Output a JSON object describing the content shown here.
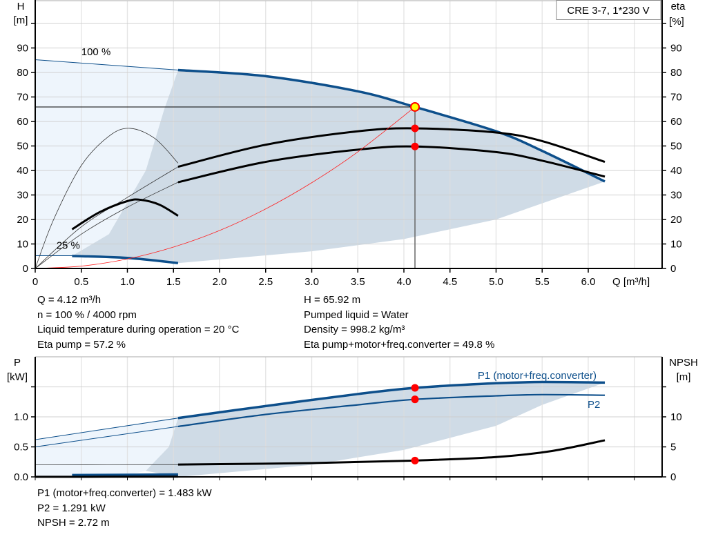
{
  "chart_data": [
    {
      "type": "line",
      "title": "CRE 3-7, 1*230 V",
      "xlabel": "Q [m³/h]",
      "ylabel_left": [
        "H",
        "[m]"
      ],
      "ylabel_right": [
        "eta",
        "[%]"
      ],
      "xlim": [
        0,
        6.8
      ],
      "ylim": [
        0,
        100
      ],
      "x_ticks": [
        "0",
        "0.5",
        "1.0",
        "1.5",
        "2.0",
        "2.5",
        "3.0",
        "3.5",
        "4.0",
        "4.5",
        "5.0",
        "5.5",
        "6.0"
      ],
      "x_tick_values": [
        0,
        0.5,
        1,
        1.5,
        2,
        2.5,
        3,
        3.5,
        4,
        4.5,
        5,
        5.5,
        6
      ],
      "y_ticks": [
        "0",
        "10",
        "20",
        "30",
        "40",
        "50",
        "60",
        "70",
        "80",
        "90"
      ],
      "y_tick_values": [
        0,
        10,
        20,
        30,
        40,
        50,
        60,
        70,
        80,
        90
      ],
      "grid": true,
      "annotations": [
        {
          "text": "100 %",
          "x": 0.5,
          "y": 87
        },
        {
          "text": "25 %",
          "x": 0.23,
          "y": 8
        }
      ],
      "colors": {
        "pump_curve": "#0d4f8b",
        "eta": "#000000",
        "system": "#ff0000",
        "area_dark": "#cfdbe6",
        "area_light": "#eef5fc",
        "marker": "#ff0000",
        "duty_marker": "#ffff00"
      },
      "series": [
        {
          "id": "qh-100-ext",
          "style": "thin-blue",
          "points": [
            [
              0,
              85.2
            ],
            [
              1.55,
              81
            ]
          ]
        },
        {
          "id": "qh-100",
          "style": "thick-blue",
          "points": [
            [
              1.55,
              81
            ],
            [
              2.5,
              78.5
            ],
            [
              3.5,
              72.3
            ],
            [
              4.12,
              65.92
            ],
            [
              5,
              56
            ],
            [
              5.5,
              48
            ],
            [
              6.18,
              35.5
            ]
          ]
        },
        {
          "id": "qh-25-ext",
          "style": "thin-blue",
          "points": [
            [
              0,
              5.2
            ],
            [
              0.4,
              5.2
            ]
          ]
        },
        {
          "id": "qh-25",
          "style": "thick-blue",
          "points": [
            [
              0.4,
              5.1
            ],
            [
              1.0,
              4.3
            ],
            [
              1.55,
              2.2
            ]
          ]
        },
        {
          "id": "eta-pump-ext",
          "style": "thin-black",
          "points": [
            [
              0,
              0
            ],
            [
              0.5,
              17
            ],
            [
              1.0,
              29
            ],
            [
              1.55,
              41.5
            ]
          ]
        },
        {
          "id": "eta-pump",
          "style": "thick-black",
          "points": [
            [
              1.55,
              41.5
            ],
            [
              2.5,
              50.5
            ],
            [
              3.5,
              56
            ],
            [
              4.12,
              57.2
            ],
            [
              5,
              55.5
            ],
            [
              5.5,
              52
            ],
            [
              6.18,
              43.5
            ]
          ]
        },
        {
          "id": "eta-total-ext",
          "style": "thin-black",
          "points": [
            [
              0,
              0
            ],
            [
              0.5,
              14
            ],
            [
              1.0,
              25
            ],
            [
              1.55,
              35.2
            ]
          ]
        },
        {
          "id": "eta-total",
          "style": "thick-black",
          "points": [
            [
              1.55,
              35.2
            ],
            [
              2.5,
              43.5
            ],
            [
              3.5,
              48.5
            ],
            [
              4.12,
              49.8
            ],
            [
              5,
              47.5
            ],
            [
              5.5,
              44
            ],
            [
              6.18,
              37.5
            ]
          ]
        },
        {
          "id": "eta-pump-25-ext",
          "style": "thin-black",
          "points": [
            [
              0,
              0
            ],
            [
              0.2,
              20
            ],
            [
              0.5,
              42
            ],
            [
              0.8,
              54
            ],
            [
              1.03,
              57.2
            ],
            [
              1.3,
              53
            ],
            [
              1.55,
              43
            ]
          ]
        },
        {
          "id": "eta-pump-25",
          "style": "thick-black",
          "points": [
            [
              0.4,
              16
            ],
            [
              0.7,
              23
            ],
            [
              1.0,
              27.5
            ],
            [
              1.15,
              28
            ],
            [
              1.35,
              26
            ],
            [
              1.55,
              21.5
            ]
          ]
        },
        {
          "id": "system-curve",
          "style": "red",
          "points": [
            [
              0,
              0
            ],
            [
              0.5,
              0.97
            ],
            [
              1,
              3.88
            ],
            [
              1.5,
              8.74
            ],
            [
              2,
              15.5
            ],
            [
              2.5,
              24.3
            ],
            [
              3,
              35
            ],
            [
              3.5,
              47.6
            ],
            [
              4.12,
              65.92
            ]
          ]
        }
      ],
      "area_dark": [
        [
          1.55,
          81
        ],
        [
          2.5,
          78.5
        ],
        [
          3.5,
          72.3
        ],
        [
          4.12,
          65.92
        ],
        [
          5,
          56
        ],
        [
          5.5,
          48
        ],
        [
          6.18,
          35.5
        ],
        [
          5,
          20
        ],
        [
          4,
          12
        ],
        [
          3,
          7
        ],
        [
          1.55,
          2.2
        ],
        [
          1.0,
          4.3
        ],
        [
          0.4,
          5.1
        ],
        [
          0.8,
          14
        ],
        [
          1.2,
          40
        ],
        [
          1.4,
          65
        ],
        [
          1.55,
          81
        ]
      ],
      "area_light": [
        [
          0,
          85.2
        ],
        [
          1.55,
          81
        ],
        [
          1.4,
          65
        ],
        [
          1.2,
          40
        ],
        [
          0.8,
          14
        ],
        [
          0.4,
          5.1
        ],
        [
          0,
          5.2
        ]
      ],
      "duty_point": {
        "q": 4.12,
        "h": 65.92
      },
      "markers": [
        {
          "q": 4.12,
          "y": 57.2
        },
        {
          "q": 4.12,
          "y": 49.8
        }
      ]
    },
    {
      "type": "line",
      "ylabel_left": [
        "P",
        "[kW]"
      ],
      "ylabel_right": [
        "NPSH",
        "[m]"
      ],
      "xlim": [
        0,
        6.8
      ],
      "ylim": [
        0,
        2.0
      ],
      "y_ticks": [
        "0.0",
        "0.5",
        "1.0"
      ],
      "y_tick_values": [
        0,
        0.5,
        1.0
      ],
      "y2_ticks": [
        "0",
        "5",
        "10"
      ],
      "y2_tick_values": [
        0,
        5,
        10
      ],
      "grid": true,
      "series": [
        {
          "id": "p1-ext",
          "style": "thin-blue",
          "points": [
            [
              0,
              0.62
            ],
            [
              1.55,
              0.98
            ]
          ]
        },
        {
          "id": "p1",
          "name": "P1 (motor+freq.converter)",
          "style": "thick-blue",
          "points": [
            [
              1.55,
              0.98
            ],
            [
              2.5,
              1.18
            ],
            [
              3.5,
              1.38
            ],
            [
              4.12,
              1.483
            ],
            [
              5,
              1.56
            ],
            [
              5.5,
              1.58
            ],
            [
              6.18,
              1.57
            ]
          ]
        },
        {
          "id": "p2-ext",
          "style": "thin-blue",
          "points": [
            [
              0,
              0.5
            ],
            [
              1.55,
              0.84
            ]
          ]
        },
        {
          "id": "p2",
          "name": "P2",
          "style": "mid-blue",
          "points": [
            [
              1.55,
              0.84
            ],
            [
              2.5,
              1.04
            ],
            [
              3.5,
              1.2
            ],
            [
              4.12,
              1.291
            ],
            [
              5,
              1.35
            ],
            [
              5.5,
              1.37
            ],
            [
              6.18,
              1.36
            ]
          ]
        },
        {
          "id": "npsh-ext",
          "style": "thin-black",
          "points": [
            [
              0,
              2.0
            ],
            [
              1.55,
              2.05
            ]
          ]
        },
        {
          "id": "npsh",
          "style": "thick-black",
          "points": [
            [
              1.55,
              2.05
            ],
            [
              3,
              2.3
            ],
            [
              4.12,
              2.72
            ],
            [
              5,
              3.3
            ],
            [
              5.6,
              4.3
            ],
            [
              6.18,
              6.1
            ]
          ],
          "axis": "right"
        },
        {
          "id": "p-25",
          "style": "thick-blue",
          "points": [
            [
              0.4,
              0.03
            ],
            [
              1.55,
              0.04
            ]
          ]
        },
        {
          "id": "npsh-25",
          "style": "thick-black",
          "points": [
            [
              0,
              0.01
            ],
            [
              1.55,
              0.04
            ]
          ]
        }
      ],
      "area_dark": [
        [
          1.55,
          0.98
        ],
        [
          2.5,
          1.18
        ],
        [
          3.5,
          1.38
        ],
        [
          4.12,
          1.483
        ],
        [
          5,
          1.56
        ],
        [
          5.5,
          1.58
        ],
        [
          6.18,
          1.57
        ],
        [
          5.5,
          1.2
        ],
        [
          5,
          0.85
        ],
        [
          4,
          0.45
        ],
        [
          3,
          0.2
        ],
        [
          1.55,
          0
        ],
        [
          1.2,
          0.1
        ],
        [
          1.45,
          0.5
        ],
        [
          1.55,
          0.98
        ]
      ],
      "area_light": [
        [
          0,
          0.62
        ],
        [
          1.55,
          0.98
        ],
        [
          1.45,
          0.5
        ],
        [
          1.2,
          0.1
        ],
        [
          0.9,
          0
        ],
        [
          0,
          0
        ]
      ],
      "markers": [
        {
          "q": 4.12,
          "y": 1.483
        },
        {
          "q": 4.12,
          "y": 1.291
        },
        {
          "q": 4.12,
          "y": 0.272
        }
      ]
    }
  ],
  "info_upper_left": [
    "Q = 4.12 m³/h",
    "n = 100 % / 4000 rpm",
    "Liquid temperature during operation = 20 °C",
    "Eta pump = 57.2 %"
  ],
  "info_upper_right": [
    "H = 65.92 m",
    "Pumped liquid = Water",
    "Density = 998.2 kg/m³",
    "Eta pump+motor+freq.converter = 49.8 %"
  ],
  "info_lower": [
    "P1 (motor+freq.converter) = 1.483 kW",
    "P2 = 1.291 kW",
    "NPSH = 2.72 m"
  ]
}
